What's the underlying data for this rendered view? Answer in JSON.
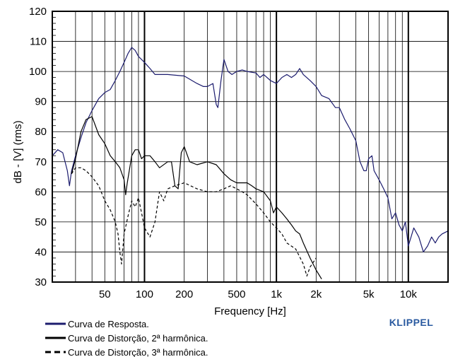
{
  "chart_data": {
    "type": "line",
    "title": "",
    "xlabel": "Frequency [Hz]",
    "ylabel": "dB - [V] (rms)",
    "xscale": "log",
    "xlim": [
      20,
      20000
    ],
    "ylim": [
      30,
      120
    ],
    "grid": true,
    "legend_position": "bottom-left",
    "x_ticks": [
      {
        "value": 50,
        "label": "50"
      },
      {
        "value": 100,
        "label": "100"
      },
      {
        "value": 200,
        "label": "200"
      },
      {
        "value": 500,
        "label": "500"
      },
      {
        "value": 1000,
        "label": "1k"
      },
      {
        "value": 2000,
        "label": "2k"
      },
      {
        "value": 5000,
        "label": "5k"
      },
      {
        "value": 10000,
        "label": "10k"
      }
    ],
    "y_ticks": [
      30,
      40,
      50,
      60,
      70,
      80,
      90,
      100,
      110,
      120
    ],
    "brand": "KLIPPEL",
    "series": [
      {
        "name": "Curva de Resposta.",
        "color": "#1c1c6e",
        "dash": "solid",
        "points": [
          [
            20,
            72
          ],
          [
            22,
            74
          ],
          [
            24,
            73
          ],
          [
            26,
            67
          ],
          [
            27,
            62
          ],
          [
            28,
            67
          ],
          [
            30,
            72
          ],
          [
            33,
            78
          ],
          [
            36,
            83
          ],
          [
            40,
            87
          ],
          [
            45,
            91
          ],
          [
            50,
            93
          ],
          [
            55,
            94
          ],
          [
            60,
            97
          ],
          [
            65,
            100
          ],
          [
            70,
            103
          ],
          [
            75,
            106
          ],
          [
            80,
            108
          ],
          [
            85,
            107
          ],
          [
            90,
            105
          ],
          [
            100,
            103
          ],
          [
            110,
            101
          ],
          [
            120,
            99
          ],
          [
            150,
            99
          ],
          [
            200,
            98.5
          ],
          [
            250,
            96
          ],
          [
            280,
            95
          ],
          [
            300,
            95
          ],
          [
            330,
            96
          ],
          [
            350,
            89
          ],
          [
            360,
            88
          ],
          [
            380,
            97
          ],
          [
            400,
            104
          ],
          [
            430,
            100
          ],
          [
            460,
            99
          ],
          [
            500,
            100
          ],
          [
            550,
            100.5
          ],
          [
            600,
            100
          ],
          [
            700,
            99.5
          ],
          [
            750,
            98
          ],
          [
            800,
            99
          ],
          [
            900,
            97
          ],
          [
            1000,
            96
          ],
          [
            1100,
            98
          ],
          [
            1200,
            99
          ],
          [
            1300,
            98
          ],
          [
            1400,
            99
          ],
          [
            1500,
            101
          ],
          [
            1600,
            99
          ],
          [
            1800,
            97
          ],
          [
            2000,
            95
          ],
          [
            2200,
            92
          ],
          [
            2500,
            91
          ],
          [
            2800,
            88
          ],
          [
            3000,
            88
          ],
          [
            3300,
            84
          ],
          [
            3600,
            81
          ],
          [
            4000,
            77
          ],
          [
            4300,
            70
          ],
          [
            4600,
            67
          ],
          [
            4800,
            67
          ],
          [
            5000,
            71
          ],
          [
            5300,
            72
          ],
          [
            5500,
            67
          ],
          [
            6000,
            64
          ],
          [
            6500,
            61
          ],
          [
            7000,
            58
          ],
          [
            7500,
            51
          ],
          [
            8000,
            53
          ],
          [
            8500,
            49
          ],
          [
            9000,
            47
          ],
          [
            9500,
            50
          ],
          [
            10000,
            42
          ],
          [
            11000,
            48
          ],
          [
            12000,
            45
          ],
          [
            13000,
            40
          ],
          [
            14000,
            42
          ],
          [
            15000,
            45
          ],
          [
            16000,
            43
          ],
          [
            17000,
            45
          ],
          [
            18000,
            46
          ],
          [
            20000,
            47
          ]
        ]
      },
      {
        "name": "Curva de Distorção, 2ª harmônica.",
        "color": "#000000",
        "dash": "solid",
        "points": [
          [
            28,
            66
          ],
          [
            30,
            71
          ],
          [
            33,
            80
          ],
          [
            36,
            84
          ],
          [
            40,
            85
          ],
          [
            45,
            79
          ],
          [
            50,
            76
          ],
          [
            55,
            72
          ],
          [
            60,
            70
          ],
          [
            65,
            68
          ],
          [
            70,
            64
          ],
          [
            72,
            59
          ],
          [
            74,
            63
          ],
          [
            80,
            72
          ],
          [
            85,
            74
          ],
          [
            90,
            74
          ],
          [
            95,
            71
          ],
          [
            100,
            72
          ],
          [
            110,
            72
          ],
          [
            120,
            70
          ],
          [
            130,
            68
          ],
          [
            150,
            70
          ],
          [
            160,
            70
          ],
          [
            170,
            62
          ],
          [
            180,
            61
          ],
          [
            190,
            73
          ],
          [
            200,
            75
          ],
          [
            220,
            70
          ],
          [
            250,
            69
          ],
          [
            300,
            70
          ],
          [
            350,
            69
          ],
          [
            400,
            66
          ],
          [
            450,
            64
          ],
          [
            500,
            63
          ],
          [
            550,
            63
          ],
          [
            600,
            63
          ],
          [
            650,
            62
          ],
          [
            700,
            61
          ],
          [
            800,
            60
          ],
          [
            900,
            57
          ],
          [
            950,
            53
          ],
          [
            1000,
            55
          ],
          [
            1100,
            53
          ],
          [
            1200,
            51
          ],
          [
            1300,
            49
          ],
          [
            1400,
            47
          ],
          [
            1500,
            46
          ],
          [
            1600,
            43
          ],
          [
            1800,
            38
          ],
          [
            2000,
            34
          ],
          [
            2200,
            31
          ]
        ]
      },
      {
        "name": "Curva de Distorção, 3ª harmônica.",
        "color": "#000000",
        "dash": "dashed",
        "points": [
          [
            28,
            66
          ],
          [
            30,
            68
          ],
          [
            33,
            68
          ],
          [
            36,
            67
          ],
          [
            40,
            65
          ],
          [
            45,
            62
          ],
          [
            50,
            57
          ],
          [
            55,
            54
          ],
          [
            60,
            50
          ],
          [
            63,
            46
          ],
          [
            65,
            40
          ],
          [
            67,
            36
          ],
          [
            70,
            46
          ],
          [
            75,
            52
          ],
          [
            80,
            57
          ],
          [
            85,
            55
          ],
          [
            90,
            58
          ],
          [
            95,
            53
          ],
          [
            100,
            48
          ],
          [
            110,
            45
          ],
          [
            120,
            50
          ],
          [
            130,
            60
          ],
          [
            140,
            57
          ],
          [
            150,
            61
          ],
          [
            170,
            62
          ],
          [
            200,
            63
          ],
          [
            250,
            61
          ],
          [
            300,
            60
          ],
          [
            350,
            60
          ],
          [
            400,
            61
          ],
          [
            450,
            62
          ],
          [
            500,
            61
          ],
          [
            550,
            60
          ],
          [
            600,
            59
          ],
          [
            700,
            56
          ],
          [
            800,
            53
          ],
          [
            900,
            50
          ],
          [
            1000,
            48
          ],
          [
            1100,
            46
          ],
          [
            1200,
            43
          ],
          [
            1400,
            41
          ],
          [
            1600,
            36
          ],
          [
            1700,
            32
          ],
          [
            1800,
            35
          ],
          [
            2000,
            38
          ]
        ]
      }
    ]
  }
}
